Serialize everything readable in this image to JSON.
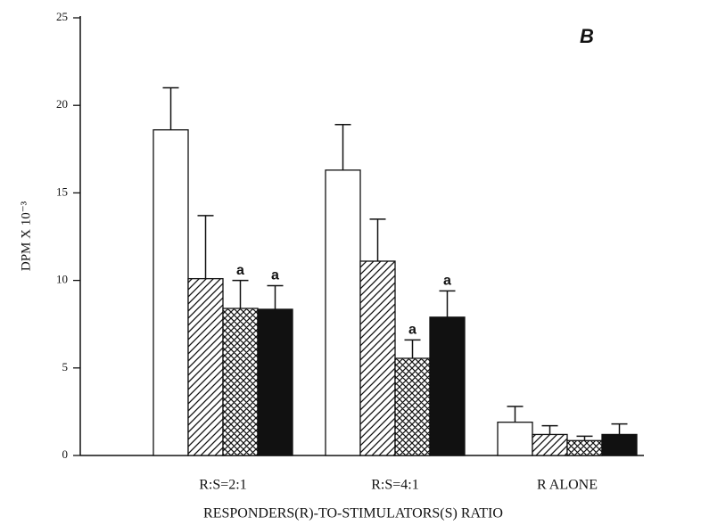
{
  "chart_data": {
    "type": "bar",
    "panel_label": "B",
    "x_label": "RESPONDERS(R)-TO-STIMULATORS(S) RATIO",
    "y_label": "DPM X 10⁻³",
    "categories": [
      "R:S=2:1",
      "R:S=4:1",
      "R ALONE"
    ],
    "series": [
      {
        "fill": "white",
        "values": [
          18.6,
          16.3,
          1.9
        ],
        "errors": [
          2.4,
          2.6,
          0.9
        ]
      },
      {
        "fill": "hatch",
        "values": [
          10.1,
          11.1,
          1.2
        ],
        "errors": [
          3.6,
          2.4,
          0.5
        ]
      },
      {
        "fill": "crosshatch",
        "values": [
          8.4,
          5.55,
          0.85
        ],
        "errors": [
          1.6,
          1.05,
          0.25
        ]
      },
      {
        "fill": "black",
        "values": [
          8.35,
          7.9,
          1.2
        ],
        "errors": [
          1.35,
          1.5,
          0.6
        ]
      }
    ],
    "annotations": [
      {
        "text": "a",
        "category": 0,
        "series": 2
      },
      {
        "text": "a",
        "category": 0,
        "series": 3
      },
      {
        "text": "a",
        "category": 1,
        "series": 2
      },
      {
        "text": "a",
        "category": 1,
        "series": 3
      }
    ],
    "ylim": [
      0,
      25
    ],
    "yticks": [
      0,
      5,
      10,
      15,
      20,
      25
    ]
  }
}
